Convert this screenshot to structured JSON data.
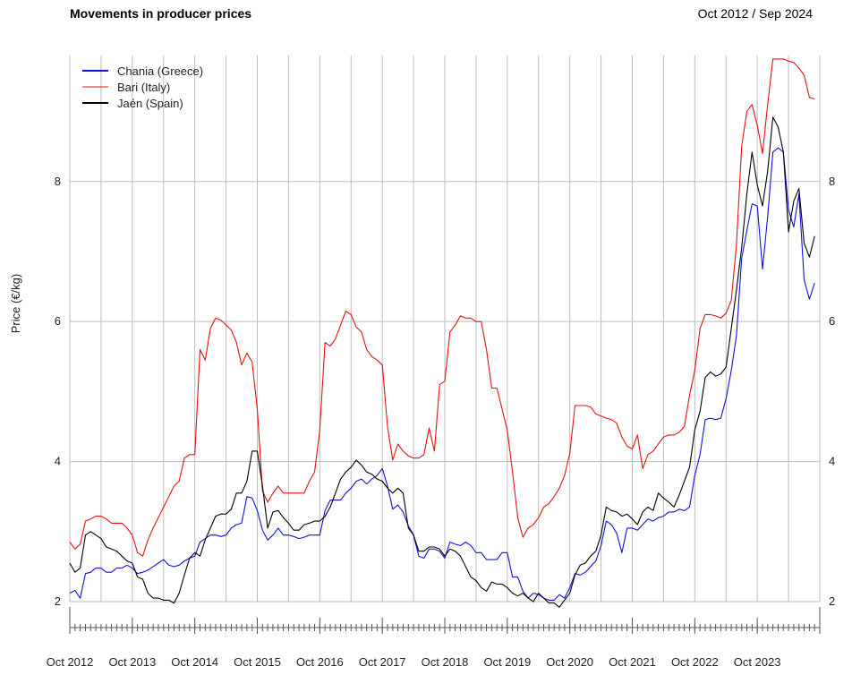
{
  "header": {
    "title": "Movements in producer prices",
    "date_range": "Oct 2012 / Sep 2024"
  },
  "colors": {
    "chania": "#1010dd",
    "bari": "#e81010",
    "jaen": "#000000",
    "grid": "#bbbbbb"
  },
  "chart_data": {
    "type": "line",
    "title": "Movements in producer prices",
    "ylabel": "Price (€/kg)",
    "xlabel": "",
    "ylim": [
      2,
      9.8
    ],
    "y_ticks": [
      2,
      4,
      6,
      8
    ],
    "x_ticks": [
      "Oct 2012",
      "Oct 2013",
      "Oct 2014",
      "Oct 2015",
      "Oct 2016",
      "Oct 2017",
      "Oct 2018",
      "Oct 2019",
      "Oct 2020",
      "Oct 2021",
      "Oct 2022",
      "Oct 2023"
    ],
    "x_start": "Oct 2012",
    "x_end": "Sep 2024",
    "grid": true,
    "legend_position": "top-left",
    "series": [
      {
        "name": "Chania (Greece)",
        "color_key": "chania",
        "values": [
          2.12,
          2.16,
          2.05,
          2.4,
          2.42,
          2.48,
          2.48,
          2.42,
          2.42,
          2.48,
          2.48,
          2.52,
          2.48,
          2.4,
          2.42,
          2.45,
          2.5,
          2.55,
          2.6,
          2.52,
          2.5,
          2.52,
          2.58,
          2.62,
          2.65,
          2.85,
          2.9,
          2.95,
          2.95,
          2.93,
          2.95,
          3.05,
          3.1,
          3.12,
          3.5,
          3.48,
          3.3,
          3.02,
          2.88,
          2.95,
          3.05,
          2.95,
          2.95,
          2.93,
          2.9,
          2.92,
          2.95,
          2.95,
          2.95,
          3.3,
          3.45,
          3.45,
          3.45,
          3.55,
          3.62,
          3.72,
          3.75,
          3.68,
          3.75,
          3.8,
          3.9,
          3.65,
          3.32,
          3.38,
          3.28,
          3.08,
          2.95,
          2.65,
          2.62,
          2.75,
          2.75,
          2.72,
          2.62,
          2.85,
          2.82,
          2.8,
          2.85,
          2.8,
          2.7,
          2.7,
          2.6,
          2.6,
          2.6,
          2.7,
          2.7,
          2.35,
          2.35,
          2.15,
          2.05,
          2.12,
          2.1,
          2.05,
          2.02,
          2.02,
          2.1,
          2.05,
          2.2,
          2.4,
          2.38,
          2.42,
          2.5,
          2.58,
          2.8,
          3.15,
          3.1,
          2.98,
          2.7,
          3.05,
          3.05,
          3.02,
          3.1,
          3.18,
          3.15,
          3.2,
          3.22,
          3.28,
          3.28,
          3.32,
          3.3,
          3.35,
          3.8,
          4.1,
          4.6,
          4.62,
          4.6,
          4.62,
          4.9,
          5.3,
          5.8,
          6.9,
          7.3,
          7.68,
          7.65,
          6.75,
          7.5,
          8.42,
          8.48,
          8.42,
          7.6,
          7.35,
          7.82,
          6.6,
          6.32,
          6.55
        ]
      },
      {
        "name": "Bari (Italy)",
        "color_key": "bari",
        "values": [
          2.85,
          2.75,
          2.82,
          3.15,
          3.18,
          3.22,
          3.22,
          3.18,
          3.12,
          3.12,
          3.12,
          3.05,
          2.95,
          2.7,
          2.65,
          2.88,
          3.05,
          3.2,
          3.35,
          3.5,
          3.65,
          3.72,
          4.05,
          4.1,
          4.1,
          5.6,
          5.45,
          5.9,
          6.05,
          6.02,
          5.95,
          5.88,
          5.7,
          5.38,
          5.55,
          5.42,
          4.75,
          3.58,
          3.42,
          3.55,
          3.65,
          3.55,
          3.55,
          3.55,
          3.55,
          3.55,
          3.72,
          3.85,
          4.45,
          5.7,
          5.65,
          5.75,
          5.95,
          6.15,
          6.1,
          5.92,
          5.85,
          5.6,
          5.5,
          5.45,
          5.38,
          4.5,
          4.02,
          4.25,
          4.15,
          4.08,
          4.05,
          4.05,
          4.1,
          4.48,
          4.15,
          5.1,
          5.15,
          5.85,
          5.95,
          6.08,
          6.05,
          6.05,
          6.0,
          6.0,
          5.6,
          5.05,
          5.05,
          4.75,
          4.45,
          3.85,
          3.2,
          2.92,
          3.05,
          3.1,
          3.2,
          3.35,
          3.4,
          3.5,
          3.62,
          3.8,
          4.12,
          4.8,
          4.8,
          4.8,
          4.78,
          4.68,
          4.65,
          4.62,
          4.6,
          4.55,
          4.35,
          4.22,
          4.18,
          4.38,
          3.9,
          4.1,
          4.15,
          4.25,
          4.35,
          4.38,
          4.38,
          4.42,
          4.5,
          4.95,
          5.3,
          5.9,
          6.1,
          6.1,
          6.08,
          6.05,
          6.12,
          6.3,
          7.1,
          8.5,
          9.0,
          9.1,
          8.8,
          8.4,
          9.1,
          9.75,
          9.75,
          9.75,
          9.72,
          9.7,
          9.62,
          9.52,
          9.2,
          9.18
        ]
      },
      {
        "name": "Jaén (Spain)",
        "color_key": "jaen",
        "values": [
          2.55,
          2.42,
          2.48,
          2.95,
          3.0,
          2.95,
          2.9,
          2.78,
          2.75,
          2.72,
          2.65,
          2.58,
          2.55,
          2.35,
          2.32,
          2.12,
          2.05,
          2.05,
          2.02,
          2.02,
          1.98,
          2.12,
          2.38,
          2.62,
          2.7,
          2.65,
          2.88,
          3.05,
          3.22,
          3.25,
          3.25,
          3.32,
          3.55,
          3.55,
          3.72,
          4.15,
          4.15,
          3.65,
          3.05,
          3.28,
          3.3,
          3.2,
          3.12,
          3.02,
          3.02,
          3.1,
          3.12,
          3.15,
          3.15,
          3.22,
          3.35,
          3.55,
          3.75,
          3.85,
          3.92,
          4.02,
          3.95,
          3.85,
          3.82,
          3.75,
          3.72,
          3.62,
          3.55,
          3.62,
          3.55,
          3.05,
          2.95,
          2.72,
          2.72,
          2.78,
          2.78,
          2.75,
          2.65,
          2.75,
          2.72,
          2.65,
          2.5,
          2.35,
          2.3,
          2.2,
          2.15,
          2.28,
          2.25,
          2.25,
          2.2,
          2.12,
          2.08,
          2.12,
          2.05,
          2.0,
          2.12,
          2.05,
          1.98,
          1.98,
          1.92,
          2.02,
          2.12,
          2.38,
          2.52,
          2.55,
          2.65,
          2.72,
          2.95,
          3.35,
          3.3,
          3.28,
          3.22,
          3.25,
          3.18,
          3.1,
          3.28,
          3.35,
          3.3,
          3.55,
          3.48,
          3.42,
          3.35,
          3.52,
          3.72,
          3.92,
          4.45,
          4.72,
          5.2,
          5.28,
          5.22,
          5.25,
          5.35,
          5.9,
          6.45,
          7.05,
          7.82,
          8.42,
          7.95,
          7.65,
          8.15,
          8.92,
          8.78,
          8.42,
          7.28,
          7.72,
          7.9,
          7.12,
          6.92,
          7.22
        ]
      }
    ]
  }
}
